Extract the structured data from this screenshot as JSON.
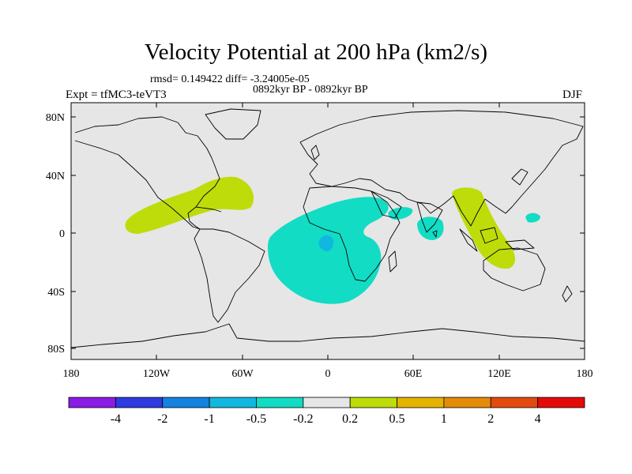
{
  "title": "Velocity Potential at 200 hPa (km2/s)",
  "stats": "rmsd= 0.149422  diff= -3.24005e-05",
  "period": "0892kyr BP - 0892kyr BP",
  "experiment": "Expt = tfMC3-teVT3",
  "season": "DJF",
  "axes": {
    "lat_ticks": [
      "80N",
      "40N",
      "0",
      "40S",
      "80S"
    ],
    "lon_ticks": [
      "180",
      "120W",
      "60W",
      "0",
      "60E",
      "120E",
      "180"
    ]
  },
  "colorbar": {
    "colors": [
      "#8a1ce6",
      "#2f3ae0",
      "#1482e0",
      "#10b8e0",
      "#12dcc4",
      "#e6e6e6",
      "#bedc0a",
      "#e4b400",
      "#e48c0a",
      "#e44a10",
      "#e40a0a"
    ],
    "labels": [
      "-4",
      "-2",
      "-1",
      "-0.5",
      "-0.2",
      "0.2",
      "0.5",
      "1",
      "2",
      "4"
    ]
  },
  "fields": {
    "ocean_land_background": "#e6e6e6",
    "positive_color": "#bedc0a",
    "negative_color": "#12dcc4",
    "strong_negative_color": "#10b8e0"
  }
}
